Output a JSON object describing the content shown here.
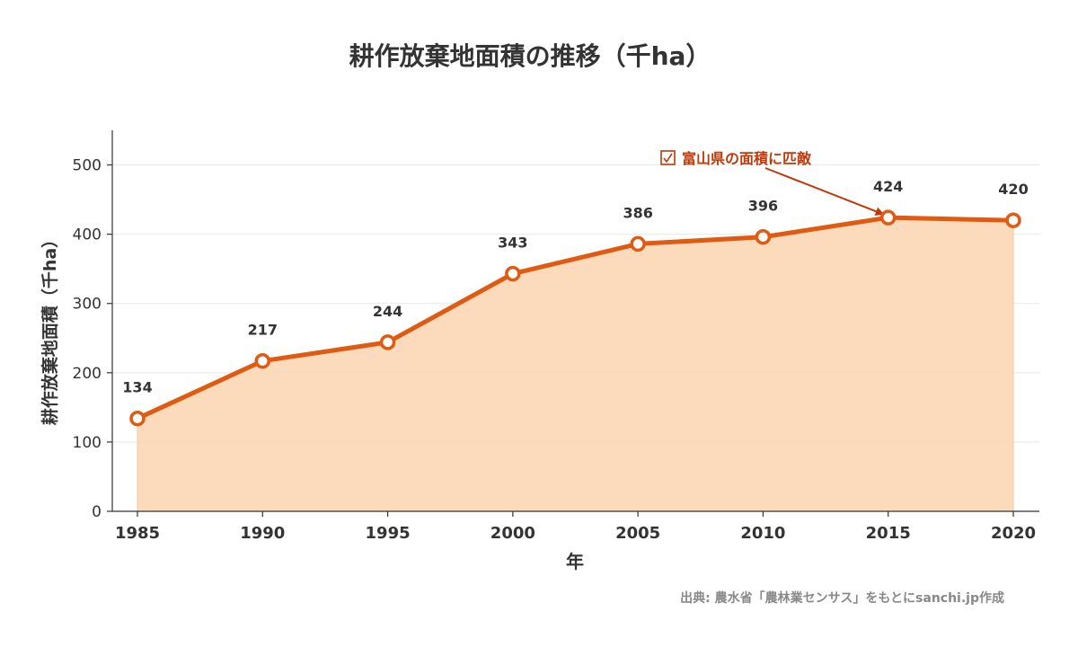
{
  "chart_data": {
    "type": "area",
    "title": "耕作放棄地面積の推移（千ha）",
    "xlabel": "年",
    "ylabel": "耕作放棄地面積（千ha）",
    "x": [
      1985,
      1990,
      1995,
      2000,
      2005,
      2010,
      2015,
      2020
    ],
    "x_tick_labels": [
      "1985",
      "1990",
      "1995",
      "2000",
      "2005",
      "2010",
      "2015",
      "2020"
    ],
    "y": [
      134,
      217,
      244,
      343,
      386,
      396,
      424,
      420
    ],
    "data_labels": [
      "134",
      "217",
      "244",
      "343",
      "386",
      "396",
      "424",
      "420"
    ],
    "ylim": [
      0,
      550
    ],
    "y_ticks": [
      0,
      100,
      200,
      300,
      400,
      500
    ],
    "y_tick_labels": [
      "0",
      "100",
      "200",
      "300",
      "400",
      "500"
    ],
    "grid": "horizontal",
    "annotation": {
      "text": "富山県の面積に匹敵",
      "icon": "checkbox-icon",
      "target_x": 2015
    },
    "source": "出典: 農水省「農林業センサス」をもとにsanchi.jp作成",
    "colors": {
      "line": "#e05a12",
      "fill": "#fbd7b5",
      "marker_fill": "#ffffff",
      "annotation": "#c0390b",
      "grid": "#e8e8e8",
      "text": "#333333",
      "source": "#888888"
    }
  }
}
